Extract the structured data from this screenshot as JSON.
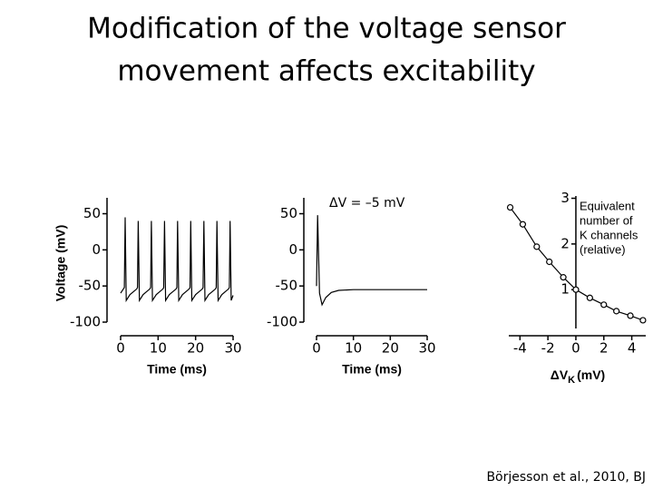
{
  "title": [
    "Modification of the voltage sensor",
    "movement affects excitability"
  ],
  "citation": "Börjesson et al., 2010, BJ",
  "chart_data": [
    {
      "type": "line",
      "ylabel": "Voltage (mV)",
      "xlabel": "Time (ms)",
      "color": "#000000",
      "x": [
        0,
        1,
        1.2,
        1.5,
        2.5,
        4.3,
        4.5,
        4.7,
        5,
        6,
        7.8,
        8,
        8.2,
        8.5,
        9.5,
        11.3,
        11.5,
        11.7,
        12,
        13,
        14.8,
        15,
        15.2,
        15.5,
        16.5,
        18.3,
        18.5,
        18.7,
        19,
        20,
        21.8,
        22,
        22.2,
        22.5,
        23.5,
        25.3,
        25.5,
        25.7,
        26,
        27,
        28.8,
        29,
        29.2,
        29.5,
        30
      ],
      "values": [
        -60,
        -52,
        45,
        -70,
        -62,
        -54,
        -52,
        40,
        -70,
        -62,
        -54,
        -52,
        40,
        -70,
        -62,
        -54,
        -52,
        40,
        -70,
        -62,
        -54,
        -52,
        40,
        -70,
        -62,
        -54,
        -52,
        40,
        -70,
        -62,
        -54,
        -52,
        40,
        -70,
        -62,
        -54,
        -52,
        40,
        -70,
        -62,
        -54,
        -52,
        40,
        -70,
        -63
      ],
      "xlim": [
        0,
        30
      ],
      "xticks": [
        0,
        10,
        20,
        30
      ],
      "ylim": [
        -100,
        72
      ],
      "yticks": [
        50,
        0,
        -50,
        -100
      ]
    },
    {
      "type": "line",
      "xlabel": "Time (ms)",
      "annotation": "ΔV = –5 mV",
      "color": "#000000",
      "x": [
        0,
        0.3,
        0.8,
        1.5,
        2.5,
        4,
        6,
        10,
        30
      ],
      "values": [
        -50,
        48,
        -60,
        -76,
        -66,
        -59,
        -56,
        -55,
        -55
      ],
      "xlim": [
        0,
        30
      ],
      "xticks": [
        0,
        10,
        20,
        30
      ],
      "ylim": [
        -100,
        72
      ],
      "yticks": [
        50,
        0,
        -50,
        -100
      ]
    },
    {
      "type": "scatter",
      "ylabel": [
        "Equivalent",
        "number of",
        "K channels",
        "(relative)"
      ],
      "xlabel": "ΔV",
      "xlabel_sub": "K",
      "xlabel_unit": "(mV)",
      "color": "#000000",
      "connect": true,
      "x": [
        -4.7,
        -3.8,
        -2.8,
        -1.9,
        -0.9,
        0,
        1,
        2,
        2.9,
        3.9,
        4.8
      ],
      "values": [
        2.8,
        2.43,
        1.94,
        1.61,
        1.27,
        1.0,
        0.82,
        0.67,
        0.53,
        0.43,
        0.33
      ],
      "xlim": [
        -4.8,
        5
      ],
      "xticks": [
        -4,
        -2,
        0,
        2,
        4
      ],
      "ylim": [
        0.15,
        3.05
      ],
      "yticks": [
        1,
        2,
        3
      ]
    }
  ]
}
